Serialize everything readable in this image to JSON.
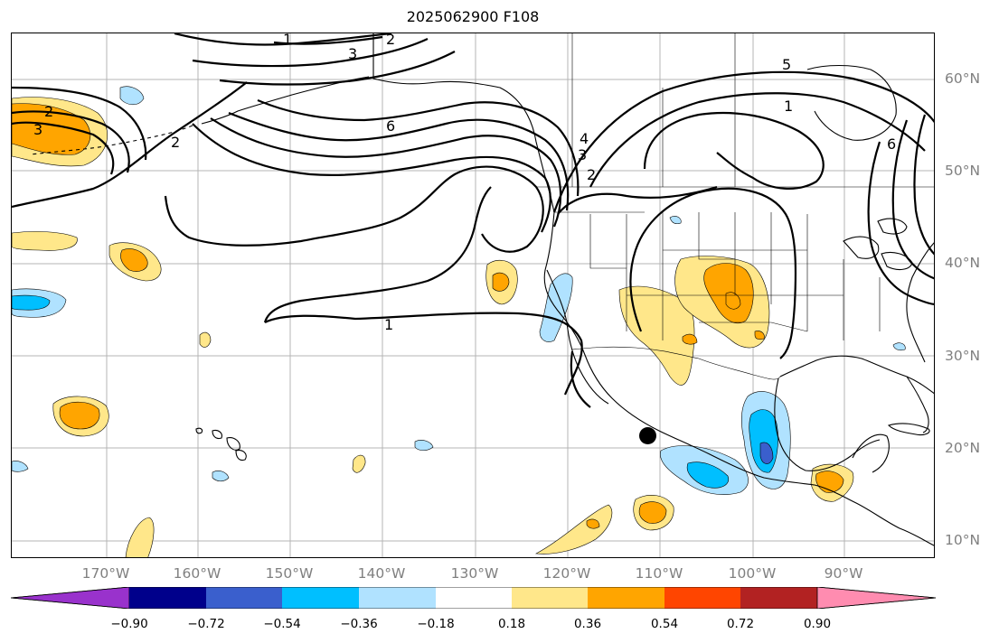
{
  "title": "2025062900 F108",
  "map": {
    "lat_labels": [
      "60°N",
      "50°N",
      "40°N",
      "30°N",
      "20°N",
      "10°N"
    ],
    "lon_labels": [
      "170°W",
      "160°W",
      "150°W",
      "140°W",
      "130°W",
      "120°W",
      "110°W",
      "100°W",
      "90°W"
    ],
    "contour_labels": [
      "1",
      "2",
      "3",
      "5",
      "1",
      "6",
      "4",
      "3",
      "2",
      "6",
      "2",
      "3",
      "2",
      "1"
    ],
    "marker": "filled-black-circle"
  },
  "colorbar": {
    "tick_labels": [
      "−0.90",
      "−0.72",
      "−0.54",
      "−0.36",
      "−0.18",
      "0.18",
      "0.36",
      "0.54",
      "0.72",
      "0.90"
    ],
    "colors": [
      "#9932cc",
      "#00008b",
      "#3a5fcd",
      "#00bfff",
      "#b0e2ff",
      "#ffffff",
      "#ffe78a",
      "#ffa500",
      "#ff4500",
      "#b22222",
      "#ff8cb0"
    ]
  },
  "palette": {
    "neg_strong": "#00bfff",
    "neg_light": "#b0e2ff",
    "neg_deep": "#3a5fcd",
    "pos_light": "#ffe78a",
    "pos_mid": "#ffa500"
  }
}
